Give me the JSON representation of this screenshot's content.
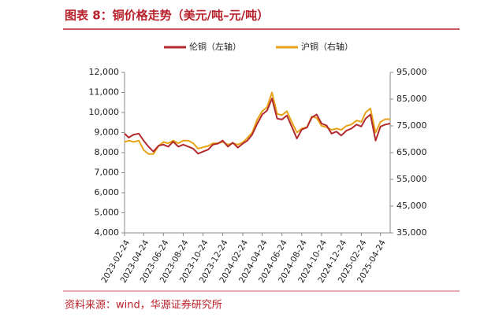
{
  "chart_data": {
    "type": "line",
    "title": "图表 8：铜价格走势（美元/吨–元/吨）",
    "source": "资料来源：wind，华源证券研究所",
    "x": [
      "2023-02-24",
      "2023-03-09",
      "2023-03-24",
      "2023-04-09",
      "2023-04-24",
      "2023-05-09",
      "2023-05-24",
      "2023-06-09",
      "2023-06-24",
      "2023-07-09",
      "2023-07-24",
      "2023-08-09",
      "2023-08-24",
      "2023-09-09",
      "2023-09-24",
      "2023-10-09",
      "2023-10-24",
      "2023-11-09",
      "2023-11-24",
      "2023-12-09",
      "2023-12-24",
      "2024-01-09",
      "2024-01-24",
      "2024-02-09",
      "2024-02-24",
      "2024-03-09",
      "2024-03-24",
      "2024-04-09",
      "2024-04-24",
      "2024-05-09",
      "2024-05-24",
      "2024-06-09",
      "2024-06-24",
      "2024-07-09",
      "2024-07-24",
      "2024-08-09",
      "2024-08-24",
      "2024-09-09",
      "2024-09-24",
      "2024-10-09",
      "2024-10-24",
      "2024-11-09",
      "2024-11-24",
      "2024-12-09",
      "2024-12-24",
      "2025-01-09",
      "2025-01-24",
      "2025-02-09",
      "2025-02-24",
      "2025-03-09",
      "2025-03-24",
      "2025-04-09",
      "2025-04-24",
      "2025-05-09",
      "2025-05-24"
    ],
    "xlim": [
      "2023-02-24",
      "2025-05-24"
    ],
    "xticks": [
      "2023-02-24",
      "2023-04-24",
      "2023-06-24",
      "2023-08-24",
      "2023-10-24",
      "2023-12-24",
      "2024-02-24",
      "2024-04-24",
      "2024-06-24",
      "2024-08-24",
      "2024-10-24",
      "2024-12-24",
      "2025-02-24",
      "2025-04-24"
    ],
    "ylim": [
      4000,
      12000
    ],
    "yticks": [
      {
        "value": 4000,
        "label": "4,000"
      },
      {
        "value": 5000,
        "label": "5,000"
      },
      {
        "value": 6000,
        "label": "6,000"
      },
      {
        "value": 7000,
        "label": "7,000"
      },
      {
        "value": 8000,
        "label": "8,000"
      },
      {
        "value": 9000,
        "label": "9,000"
      },
      {
        "value": 10000,
        "label": "10,000"
      },
      {
        "value": 11000,
        "label": "11,000"
      },
      {
        "value": 12000,
        "label": "12,000"
      }
    ],
    "y2lim": [
      35000,
      95000
    ],
    "y2ticks": [
      {
        "value": 35000,
        "label": "35,000"
      },
      {
        "value": 45000,
        "label": "45,000"
      },
      {
        "value": 55000,
        "label": "55,000"
      },
      {
        "value": 65000,
        "label": "65,000"
      },
      {
        "value": 75000,
        "label": "75,000"
      },
      {
        "value": 85000,
        "label": "85,000"
      },
      {
        "value": 95000,
        "label": "95,000"
      }
    ],
    "series": [
      {
        "name": "伦铜（左轴）",
        "color": "#b22a2e",
        "values": [
          8950,
          8750,
          8900,
          8950,
          8600,
          8300,
          8050,
          8350,
          8400,
          8300,
          8550,
          8300,
          8400,
          8300,
          8200,
          7950,
          8050,
          8150,
          8400,
          8450,
          8600,
          8300,
          8500,
          8250,
          8450,
          8600,
          8900,
          9450,
          9900,
          10100,
          10700,
          9700,
          9650,
          9850,
          9300,
          8700,
          9150,
          9250,
          9750,
          9900,
          9450,
          9350,
          8950,
          9050,
          8850,
          9100,
          9200,
          9400,
          9300,
          9700,
          9900,
          8600,
          9300,
          9400,
          9450
        ]
      },
      {
        "name": "沪铜（右轴）",
        "color": "#e8a317",
        "axis": "y2",
        "values": [
          69000,
          69500,
          69000,
          69500,
          66000,
          64500,
          64500,
          67500,
          69000,
          68500,
          69500,
          68500,
          69500,
          69500,
          68500,
          66500,
          67000,
          67500,
          68500,
          68500,
          69000,
          68000,
          68500,
          68000,
          68800,
          70500,
          72500,
          77500,
          80500,
          82000,
          87500,
          79500,
          79000,
          80500,
          76500,
          72500,
          74000,
          74500,
          78500,
          78000,
          75000,
          74500,
          73500,
          74000,
          73500,
          75000,
          75500,
          77000,
          76500,
          80000,
          81500,
          72500,
          76500,
          77500,
          77500
        ]
      }
    ]
  }
}
